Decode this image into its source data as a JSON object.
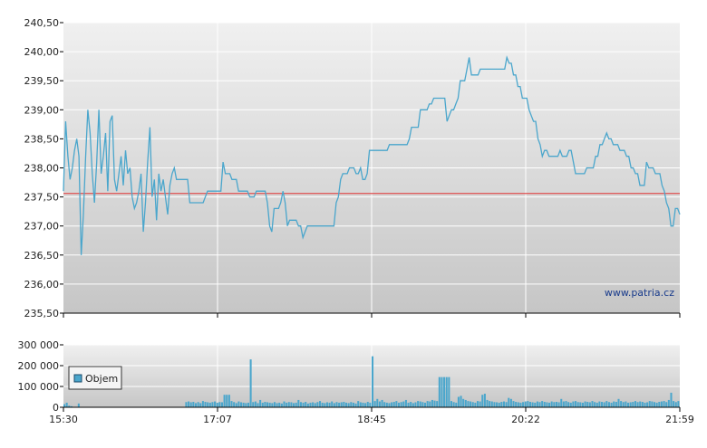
{
  "watermark": "www.patria.cz",
  "legend": {
    "label": "Objem"
  },
  "colors": {
    "line": "#4aa6cc",
    "reference": "#e05050",
    "volume": "#4aa6cc",
    "grid": "#ffffff",
    "plot_top": "#f0f0f0",
    "plot_bottom": "#c8c8c8"
  },
  "chart_data": [
    {
      "type": "line",
      "name": "price",
      "ylim": [
        235.5,
        240.5
      ],
      "yticks": [
        "240,50",
        "240,00",
        "239,50",
        "239,00",
        "238,50",
        "238,00",
        "237,50",
        "237,00",
        "236,50",
        "236,00",
        "235,50"
      ],
      "xticks": [
        "15:30",
        "17:07",
        "18:45",
        "20:22",
        "21:59"
      ],
      "reference_line": 237.56,
      "series": [
        {
          "values": [
            237.6,
            238.8,
            238.2,
            237.8,
            238.0,
            238.3,
            238.5,
            238.2,
            236.5,
            237.2,
            238.2,
            239.0,
            238.6,
            237.9,
            237.4,
            238.1,
            239.0,
            237.9,
            238.2,
            238.6,
            237.6,
            238.8,
            238.9,
            237.8,
            237.6,
            237.9,
            238.2,
            237.7,
            238.3,
            237.9,
            238.0,
            237.5,
            237.3,
            237.4,
            237.6,
            237.9,
            236.9,
            237.4,
            238.1,
            238.7,
            237.5,
            237.8,
            237.1,
            237.9,
            237.6,
            237.8,
            237.5,
            237.2,
            237.7,
            237.9,
            238.0,
            237.8,
            237.8,
            237.8,
            237.8,
            237.8,
            237.8,
            237.4,
            237.4,
            237.4,
            237.4,
            237.4,
            237.4,
            237.4,
            237.5,
            237.6,
            237.6,
            237.6,
            237.6,
            237.6,
            237.6,
            237.6,
            238.1,
            237.9,
            237.9,
            237.9,
            237.8,
            237.8,
            237.8,
            237.6,
            237.6,
            237.6,
            237.6,
            237.6,
            237.5,
            237.5,
            237.5,
            237.6,
            237.6,
            237.6,
            237.6,
            237.6,
            237.4,
            237.0,
            236.9,
            237.3,
            237.3,
            237.3,
            237.4,
            237.6,
            237.4,
            237.0,
            237.1,
            237.1,
            237.1,
            237.1,
            237.0,
            237.0,
            236.8,
            236.9,
            237.0,
            237.0,
            237.0,
            237.0,
            237.0,
            237.0,
            237.0,
            237.0,
            237.0,
            237.0,
            237.0,
            237.0,
            237.0,
            237.4,
            237.5,
            237.8,
            237.9,
            237.9,
            237.9,
            238.0,
            238.0,
            238.0,
            237.9,
            237.9,
            238.0,
            237.8,
            237.8,
            237.9,
            238.3,
            238.3,
            238.3,
            238.3,
            238.3,
            238.3,
            238.3,
            238.3,
            238.3,
            238.4,
            238.4,
            238.4,
            238.4,
            238.4,
            238.4,
            238.4,
            238.4,
            238.4,
            238.5,
            238.7,
            238.7,
            238.7,
            238.7,
            239.0,
            239.0,
            239.0,
            239.0,
            239.1,
            239.1,
            239.2,
            239.2,
            239.2,
            239.2,
            239.2,
            239.2,
            238.8,
            238.9,
            239.0,
            239.0,
            239.1,
            239.2,
            239.5,
            239.5,
            239.5,
            239.7,
            239.9,
            239.6,
            239.6,
            239.6,
            239.6,
            239.7,
            239.7,
            239.7,
            239.7,
            239.7,
            239.7,
            239.7,
            239.7,
            239.7,
            239.7,
            239.7,
            239.7,
            239.9,
            239.8,
            239.8,
            239.6,
            239.6,
            239.4,
            239.4,
            239.2,
            239.2,
            239.2,
            239.0,
            238.9,
            238.8,
            238.8,
            238.5,
            238.4,
            238.2,
            238.3,
            238.3,
            238.2,
            238.2,
            238.2,
            238.2,
            238.2,
            238.3,
            238.2,
            238.2,
            238.2,
            238.3,
            238.3,
            238.1,
            237.9,
            237.9,
            237.9,
            237.9,
            237.9,
            238.0,
            238.0,
            238.0,
            238.0,
            238.2,
            238.2,
            238.4,
            238.4,
            238.5,
            238.6,
            238.5,
            238.5,
            238.4,
            238.4,
            238.4,
            238.3,
            238.3,
            238.3,
            238.2,
            238.2,
            238.0,
            238.0,
            237.9,
            237.9,
            237.7,
            237.7,
            237.7,
            238.1,
            238.0,
            238.0,
            238.0,
            237.9,
            237.9,
            237.9,
            237.7,
            237.6,
            237.4,
            237.3,
            237.0,
            237.0,
            237.3,
            237.3,
            237.2
          ]
        }
      ]
    },
    {
      "type": "bar",
      "name": "volume",
      "ylim": [
        0,
        300000
      ],
      "yticks": [
        "300 000",
        "200 000",
        "100 000",
        "0"
      ],
      "xticks": [
        "15:30",
        "17:07",
        "18:45",
        "20:22",
        "21:59"
      ],
      "series": [
        {
          "name": "Objem",
          "values": [
            15000,
            22000,
            8000,
            5000,
            0,
            0,
            18000,
            0,
            0,
            0,
            0,
            0,
            0,
            0,
            0,
            0,
            0,
            0,
            0,
            0,
            0,
            0,
            0,
            0,
            0,
            0,
            0,
            0,
            0,
            0,
            0,
            0,
            0,
            0,
            0,
            0,
            0,
            0,
            0,
            0,
            0,
            0,
            0,
            0,
            0,
            0,
            0,
            0,
            0,
            0,
            0,
            25000,
            28000,
            24000,
            26000,
            20000,
            25000,
            20000,
            30000,
            26000,
            24000,
            22000,
            25000,
            28000,
            22000,
            25000,
            24000,
            60000,
            60000,
            60000,
            30000,
            25000,
            20000,
            28000,
            24000,
            22000,
            20000,
            22000,
            230000,
            25000,
            28000,
            20000,
            35000,
            22000,
            26000,
            24000,
            22000,
            20000,
            25000,
            20000,
            22000,
            18000,
            28000,
            22000,
            25000,
            24000,
            20000,
            22000,
            35000,
            25000,
            22000,
            26000,
            18000,
            22000,
            24000,
            20000,
            25000,
            30000,
            22000,
            20000,
            24000,
            22000,
            28000,
            20000,
            25000,
            22000,
            24000,
            26000,
            22000,
            20000,
            25000,
            22000,
            18000,
            30000,
            24000,
            22000,
            20000,
            26000,
            22000,
            245000,
            30000,
            40000,
            28000,
            35000,
            25000,
            22000,
            20000,
            24000,
            26000,
            30000,
            22000,
            25000,
            28000,
            35000,
            22000,
            26000,
            20000,
            24000,
            30000,
            28000,
            25000,
            22000,
            30000,
            28000,
            35000,
            32000,
            30000,
            145000,
            145000,
            145000,
            145000,
            145000,
            30000,
            25000,
            22000,
            50000,
            55000,
            40000,
            35000,
            30000,
            28000,
            25000,
            22000,
            30000,
            28000,
            60000,
            65000,
            35000,
            30000,
            28000,
            25000,
            24000,
            22000,
            26000,
            28000,
            25000,
            45000,
            40000,
            30000,
            26000,
            24000,
            22000,
            25000,
            28000,
            30000,
            26000,
            24000,
            22000,
            28000,
            25000,
            30000,
            26000,
            24000,
            22000,
            28000,
            25000,
            26000,
            24000,
            40000,
            28000,
            30000,
            25000,
            22000,
            28000,
            30000,
            25000,
            24000,
            22000,
            28000,
            26000,
            24000,
            30000,
            25000,
            22000,
            28000,
            26000,
            24000,
            30000,
            25000,
            22000,
            28000,
            26000,
            40000,
            30000,
            25000,
            28000,
            22000,
            24000,
            26000,
            30000,
            25000,
            28000,
            26000,
            22000,
            24000,
            30000,
            28000,
            25000,
            22000,
            26000,
            28000,
            30000,
            25000,
            35000,
            70000,
            30000,
            25000,
            30000
          ]
        }
      ]
    }
  ]
}
